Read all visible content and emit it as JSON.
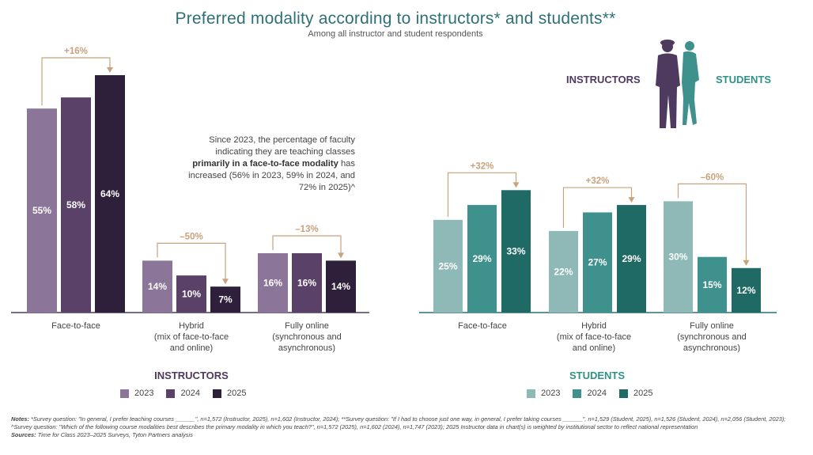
{
  "title": "Preferred modality according to instructors* and students**",
  "subtitle": "Among all instructor and student respondents",
  "legend_heads": {
    "instructors": "INSTRUCTORS",
    "students": "STUDENTS"
  },
  "callout": {
    "line1": "Since 2023, the percentage of faculty indicating they are teaching classes",
    "bold": "primarily in a face-to-face modality",
    "line2": "has increased (56% in 2023, 59% in 2024, and 72% in 2025)^"
  },
  "chart_data": [
    {
      "type": "bar",
      "title": "INSTRUCTORS",
      "categories": [
        "Face-to-face",
        "Hybrid (mix of face-to-face and online)",
        "Fully online (synchronous and asynchronous)"
      ],
      "category_lines": [
        [
          "Face-to-face"
        ],
        [
          "Hybrid",
          "(mix of face-to-face",
          "and online)"
        ],
        [
          "Fully online",
          "(synchronous and",
          "asynchronous)"
        ]
      ],
      "series": [
        {
          "name": "2023",
          "values": [
            55,
            14,
            16
          ],
          "color": "#8b7599"
        },
        {
          "name": "2024",
          "values": [
            58,
            10,
            16
          ],
          "color": "#5a4168"
        },
        {
          "name": "2025",
          "values": [
            64,
            7,
            14
          ],
          "color": "#2e1f3b"
        }
      ],
      "value_labels": [
        [
          "55%",
          "14%",
          "16%"
        ],
        [
          "58%",
          "10%",
          "16%"
        ],
        [
          "64%",
          "7%",
          "14%"
        ]
      ],
      "changes": [
        "+16%",
        "–50%",
        "–13%"
      ],
      "ylim": [
        0,
        66
      ],
      "bracket_color": "#c8a27c"
    },
    {
      "type": "bar",
      "title": "STUDENTS",
      "categories": [
        "Face-to-face",
        "Hybrid (mix of face-to-face and online)",
        "Fully online (synchronous and asynchronous)"
      ],
      "category_lines": [
        [
          "Face-to-face"
        ],
        [
          "Hybrid",
          "(mix of face-to-face",
          "and online)"
        ],
        [
          "Fully online",
          "(synchronous and",
          "asynchronous)"
        ]
      ],
      "series": [
        {
          "name": "2023",
          "values": [
            25,
            22,
            30
          ],
          "color": "#8fb9b7"
        },
        {
          "name": "2024",
          "values": [
            29,
            27,
            15
          ],
          "color": "#3e918c"
        },
        {
          "name": "2025",
          "values": [
            33,
            29,
            12
          ],
          "color": "#1f6a65"
        }
      ],
      "value_labels": [
        [
          "25%",
          "22%",
          "30%"
        ],
        [
          "29%",
          "27%",
          "15%"
        ],
        [
          "33%",
          "29%",
          "12%"
        ]
      ],
      "changes": [
        "+32%",
        "+32%",
        "–60%"
      ],
      "ylim": [
        0,
        66
      ],
      "bracket_color": "#c8a27c"
    }
  ],
  "notes": {
    "notes_label": "Notes:",
    "notes_text": " *Survey question: \"In general, I prefer teaching courses ______\", n=1,572 (Instructor, 2025), n=1,602 (Instructor, 2024); **Survey question: \"If I had to choose just one way, in general, I prefer taking courses ______\", n=1,529 (Student, 2025), n=1,526 (Student, 2024), n=2,056 (Student, 2023); ^Survey question: \"Which of the following course modalities best describes the primary modality in which you teach?\", n=1,572 (2025), n=1,602 (2024), n=1,747 (2023); 2025 Instructor data in chart(s) is weighted by institutional sector to reflect national representation",
    "sources_label": "Sources:",
    "sources_text": " Time for Class 2023–2025 Surveys, Tyton Partners analysis"
  }
}
